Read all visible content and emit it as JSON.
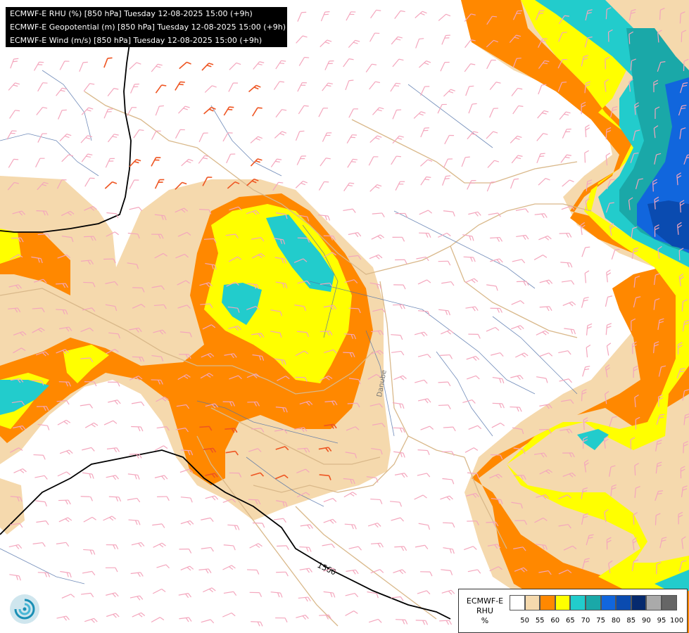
{
  "header": {
    "lines": [
      "ECMWF-E RHU (%) [850 hPa] Tuesday 12-08-2025 15:00 (+9h)",
      "ECMWF-E Geopotential (m) [850 hPa] Tuesday 12-08-2025 15:00 (+9h)",
      "ECMWF-E Wind (m/s) [850 hPa] Tuesday 12-08-2025 15:00 (+9h)"
    ]
  },
  "map": {
    "contour_label": "1560",
    "river_label": "Danube"
  },
  "legend": {
    "title_lines": [
      "ECMWF-E",
      "RHU",
      "%"
    ],
    "ticks": [
      "50",
      "55",
      "60",
      "65",
      "70",
      "75",
      "80",
      "85",
      "90",
      "95",
      "100"
    ],
    "colors": [
      "#ffffff",
      "#f5d9ad",
      "#ff8800",
      "#ffff00",
      "#22cccc",
      "#1aa8a8",
      "#1166dd",
      "#0a4bb0",
      "#062a6e",
      "#aaaaaa",
      "#666666"
    ]
  },
  "icons": {
    "logo": "ecmwf-swirl-logo",
    "barbs": "wind-barb-icon"
  }
}
